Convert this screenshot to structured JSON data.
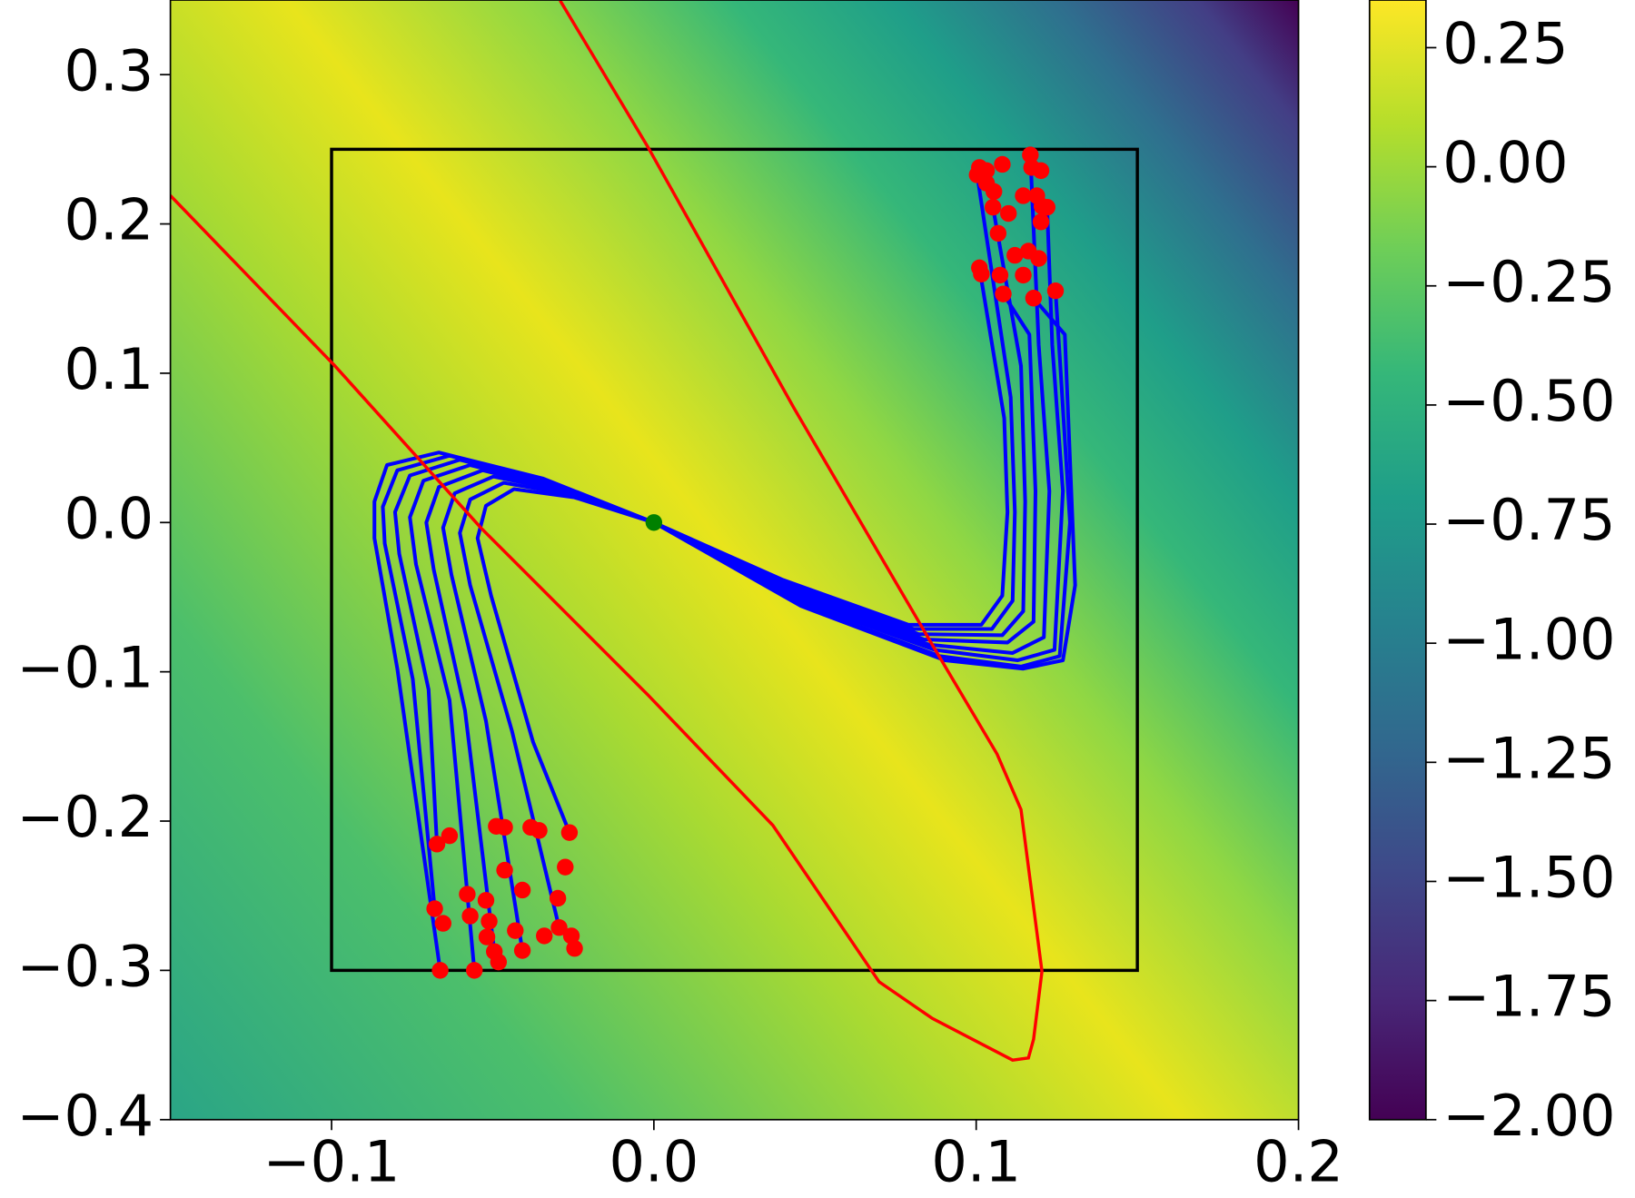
{
  "chart_data": {
    "type": "contour",
    "xlim": [
      -0.15,
      0.2
    ],
    "ylim": [
      -0.4,
      0.35
    ],
    "xticks": [
      {
        "value": -0.1,
        "label": "−0.1"
      },
      {
        "value": 0,
        "label": "0.0"
      },
      0.1,
      0.2
    ],
    "yticks": [
      {
        "value": -0.4,
        "label": "−0.4"
      },
      {
        "value": -0.3,
        "label": "−0.3"
      },
      {
        "value": -0.2,
        "label": "−0.2"
      },
      {
        "value": -0.1,
        "label": "−0.1"
      },
      {
        "value": 0,
        "label": "0.0"
      },
      0.1,
      0.2,
      0.3
    ],
    "colorbar": {
      "clim": [
        -2.0,
        0.35
      ],
      "ticks": [
        {
          "value": -2.0,
          "label": "−2.00"
        },
        {
          "value": -1.75,
          "label": "−1.75"
        },
        {
          "value": -1.5,
          "label": "−1.50"
        },
        {
          "value": -1.25,
          "label": "−1.25"
        },
        {
          "value": -1.0,
          "label": "−1.00"
        },
        {
          "value": -0.75,
          "label": "−0.75"
        },
        {
          "value": -0.5,
          "label": "−0.50"
        },
        {
          "value": -0.25,
          "label": "−0.25"
        },
        {
          "value": 0,
          "label": "0.00"
        },
        0.25
      ],
      "colormap": [
        "#440154",
        "#482878",
        "#3e4989",
        "#31688e",
        "#26828e",
        "#1f9e89",
        "#35b779",
        "#6ece58",
        "#b5de2b",
        "#fde725"
      ]
    },
    "box": {
      "color": "#000000",
      "x": [
        -0.1,
        0.15
      ],
      "y": [
        -0.3,
        0.25
      ]
    },
    "boundary": {
      "color": "#ff0000",
      "x": [
        -0.15,
        -0.099,
        -0.0537,
        -0.0019,
        0.0369,
        0.0699,
        0.0864,
        0.1113,
        0.1162,
        0.1178,
        0.1204,
        0.1139,
        0.1065,
        0.0854,
        0.0434,
        -0.0019,
        -0.0291
      ],
      "y": [
        0.219,
        0.105,
        -0.0035,
        -0.1154,
        -0.2028,
        -0.3077,
        -0.3322,
        -0.3601,
        -0.3587,
        -0.3462,
        -0.3007,
        -0.1923,
        -0.1552,
        -0.0783,
        0.0769,
        0.2517,
        0.3497
      ]
    },
    "trajectories": {
      "color": "#0000ff",
      "lines": [
        {
          "x": [
            0,
            -0.0343,
            -0.0667,
            -0.0828,
            -0.0867,
            -0.0867,
            -0.0796,
            -0.0663
          ],
          "y": [
            0,
            0.0294,
            0.0469,
            0.0385,
            0.014,
            -0.0105,
            -0.0979,
            -0.3
          ]
        },
        {
          "x": [
            0,
            -0.0343,
            -0.0634,
            -0.0796,
            -0.0841,
            -0.0835,
            -0.0748,
            -0.068
          ],
          "y": [
            0,
            0.028,
            0.0448,
            0.035,
            0.0105,
            -0.014,
            -0.1049,
            -0.2587
          ]
        },
        {
          "x": [
            0,
            -0.0327,
            -0.0602,
            -0.0757,
            -0.0803,
            -0.079,
            -0.0699,
            -0.0673
          ],
          "y": [
            0,
            0.0266,
            0.042,
            0.0315,
            0.007,
            -0.021,
            -0.1119,
            -0.2154
          ]
        },
        {
          "x": [
            0,
            -0.0311,
            -0.057,
            -0.0715,
            -0.0757,
            -0.0738,
            -0.0634,
            -0.0557
          ],
          "y": [
            0,
            0.0245,
            0.0385,
            0.028,
            0.0035,
            -0.028,
            -0.1189,
            -0.3
          ]
        },
        {
          "x": [
            0,
            -0.0294,
            -0.0531,
            -0.0667,
            -0.0706,
            -0.0683,
            -0.0586,
            -0.0495
          ],
          "y": [
            0,
            0.0224,
            0.035,
            0.0238,
            0,
            -0.0315,
            -0.1259,
            -0.2874
          ]
        },
        {
          "x": [
            0,
            -0.0278,
            -0.0498,
            -0.0618,
            -0.0654,
            -0.0628,
            -0.0521,
            -0.0408
          ],
          "y": [
            0,
            0.021,
            0.0308,
            0.0196,
            -0.0035,
            -0.035,
            -0.1329,
            -0.2867
          ]
        },
        {
          "x": [
            0,
            -0.0262,
            -0.0466,
            -0.057,
            -0.0602,
            -0.057,
            -0.044,
            -0.0294
          ],
          "y": [
            0,
            0.0189,
            0.0266,
            0.0154,
            -0.007,
            -0.042,
            -0.1399,
            -0.2713
          ]
        },
        {
          "x": [
            0,
            -0.0246,
            -0.0434,
            -0.0521,
            -0.0547,
            -0.0505,
            -0.0375,
            -0.0262
          ],
          "y": [
            0,
            0.0168,
            0.0224,
            0.0112,
            -0.0105,
            -0.049,
            -0.1469,
            -0.2077
          ]
        },
        {
          "x": [
            0,
            0.0401,
            0.079,
            0.1016,
            0.1081,
            0.1097,
            0.1087,
            0.101
          ],
          "y": [
            0,
            -0.0385,
            -0.0685,
            -0.0685,
            -0.049,
            0.007,
            0.0699,
            0.1706
          ]
        },
        {
          "x": [
            0,
            0.0408,
            0.0806,
            0.1049,
            0.1113,
            0.112,
            0.1107,
            0.1003
          ],
          "y": [
            0,
            -0.0406,
            -0.0713,
            -0.0713,
            -0.0524,
            0.007,
            0.0839,
            0.2329
          ]
        },
        {
          "x": [
            0,
            0.0417,
            0.0822,
            0.1081,
            0.1146,
            0.1152,
            0.1139,
            0.1052
          ],
          "y": [
            0,
            -0.0434,
            -0.0748,
            -0.0755,
            -0.0594,
            0.014,
            0.1049,
            0.2112
          ]
        },
        {
          "x": [
            0,
            0.0427,
            0.0838,
            0.1097,
            0.1178,
            0.1184,
            0.1165,
            0.1084
          ],
          "y": [
            0,
            -0.0462,
            -0.0783,
            -0.0804,
            -0.0664,
            0.021,
            0.1259,
            0.1531
          ]
        },
        {
          "x": [
            0,
            0.0434,
            0.0854,
            0.1113,
            0.121,
            0.1227,
            0.1194,
            0.1168
          ],
          "y": [
            0,
            -0.049,
            -0.0818,
            -0.0874,
            -0.0769,
            0.021,
            0.1189,
            0.2462
          ]
        },
        {
          "x": [
            0,
            0.044,
            0.0871,
            0.1129,
            0.1243,
            0.1269,
            0.1236,
            0.122
          ],
          "y": [
            0,
            -0.0517,
            -0.0853,
            -0.0923,
            -0.0853,
            0.021,
            0.1189,
            0.2112
          ]
        },
        {
          "x": [
            0,
            0.045,
            0.0887,
            0.1139,
            0.1259,
            0.1291,
            0.1259,
            0.1246
          ],
          "y": [
            0,
            -0.0545,
            -0.0895,
            -0.0965,
            -0.0895,
            0,
            0.1119,
            0.1552
          ]
        },
        {
          "x": [
            0,
            0.0456,
            0.0903,
            0.1146,
            0.1269,
            0.1307,
            0.1275,
            0.1178
          ],
          "y": [
            0,
            -0.0559,
            -0.0923,
            -0.0979,
            -0.0923,
            -0.042,
            0.1259,
            0.1503
          ]
        }
      ]
    },
    "endpoints": {
      "color": "#ff0000",
      "x": [
        -0.0673,
        -0.0634,
        -0.0489,
        -0.0463,
        -0.0382,
        -0.0356,
        -0.0262,
        -0.0275,
        -0.0463,
        -0.0408,
        -0.0579,
        -0.0521,
        -0.0298,
        -0.068,
        -0.0654,
        -0.057,
        -0.0511,
        -0.043,
        -0.0294,
        -0.034,
        -0.0256,
        -0.0518,
        -0.0246,
        -0.0495,
        -0.0408,
        -0.0663,
        -0.0557,
        -0.0482,
        0.101,
        0.1032,
        0.1003,
        0.1081,
        0.1168,
        0.1172,
        0.1201,
        0.1032,
        0.1055,
        0.1146,
        0.1188,
        0.1204,
        0.122,
        0.1052,
        0.11,
        0.1201,
        0.1068,
        0.112,
        0.1162,
        0.1194,
        0.101,
        0.1016,
        0.1074,
        0.1146,
        0.1084,
        0.1178,
        0.1246
      ],
      "y": [
        -0.2154,
        -0.2098,
        -0.2035,
        -0.2042,
        -0.2042,
        -0.2063,
        -0.2077,
        -0.2308,
        -0.2329,
        -0.2462,
        -0.249,
        -0.2531,
        -0.2517,
        -0.2587,
        -0.2685,
        -0.2636,
        -0.2671,
        -0.2734,
        -0.2713,
        -0.2769,
        -0.2769,
        -0.2776,
        -0.2853,
        -0.2874,
        -0.2867,
        -0.3,
        -0.3,
        -0.2944,
        0.2378,
        0.2357,
        0.2329,
        0.2399,
        0.2462,
        0.2378,
        0.2357,
        0.2273,
        0.2217,
        0.2189,
        0.2189,
        0.2119,
        0.2112,
        0.2112,
        0.207,
        0.2014,
        0.1937,
        0.179,
        0.1818,
        0.1769,
        0.1706,
        0.1664,
        0.1657,
        0.1657,
        0.1531,
        0.1503,
        0.1552
      ]
    },
    "origin": {
      "color": "#008000",
      "x": 0,
      "y": 0
    }
  }
}
